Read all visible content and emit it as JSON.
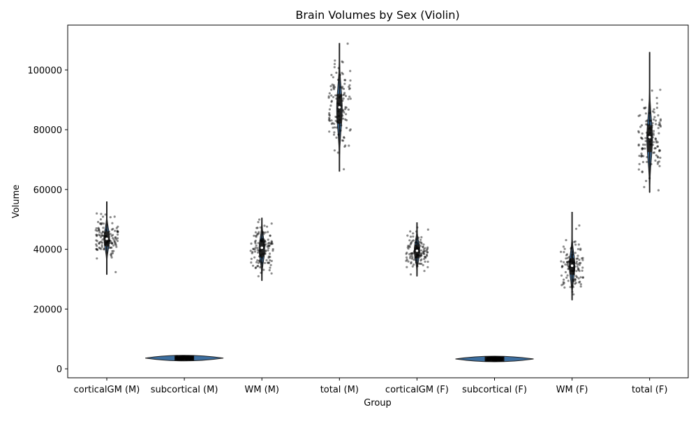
{
  "chart_data": {
    "type": "violin",
    "title": "Brain Volumes by Sex (Violin)",
    "xlabel": "Group",
    "ylabel": "Volume",
    "ylim": [
      -3000,
      115000
    ],
    "yticks": [
      0,
      20000,
      40000,
      60000,
      80000,
      100000
    ],
    "ytick_labels": [
      "0",
      "20000",
      "40000",
      "60000",
      "80000",
      "100000"
    ],
    "grid": false,
    "legend": "none",
    "colors": {
      "violin_fill": "#3c6e9f",
      "violin_edge": "#222222",
      "points": "#000000",
      "median": "#ffffff"
    },
    "categories": [
      "corticalGM (M)",
      "subcortical (M)",
      "WM (M)",
      "total (M)",
      "corticalGM (F)",
      "subcortical (F)",
      "WM (F)",
      "total (F)"
    ],
    "groups": [
      {
        "label": "corticalGM (M)",
        "min": 31500,
        "q1": 41000,
        "median": 43500,
        "q3": 46000,
        "max": 56000,
        "mean": 43500,
        "sd": 3300
      },
      {
        "label": "subcortical (M)",
        "min": 3000,
        "q1": 3400,
        "median": 3600,
        "q3": 3800,
        "max": 4300,
        "mean": 3600,
        "sd": 250
      },
      {
        "label": "WM (M)",
        "min": 29500,
        "q1": 37500,
        "median": 40500,
        "q3": 43000,
        "max": 50500,
        "mean": 40000,
        "sd": 3800
      },
      {
        "label": "total (M)",
        "min": 66000,
        "q1": 82000,
        "median": 87500,
        "q3": 92000,
        "max": 109000,
        "mean": 87000,
        "sd": 7000
      },
      {
        "label": "corticalGM (F)",
        "min": 31000,
        "q1": 37000,
        "median": 39500,
        "q3": 41500,
        "max": 49000,
        "mean": 39500,
        "sd": 3000
      },
      {
        "label": "subcortical (F)",
        "min": 2800,
        "q1": 3100,
        "median": 3300,
        "q3": 3500,
        "max": 4000,
        "mean": 3300,
        "sd": 250
      },
      {
        "label": "WM (F)",
        "min": 23000,
        "q1": 31500,
        "median": 34500,
        "q3": 37000,
        "max": 52500,
        "mean": 34500,
        "sd": 4200
      },
      {
        "label": "total (F)",
        "min": 59000,
        "q1": 72500,
        "median": 77500,
        "q3": 81500,
        "max": 106000,
        "mean": 77000,
        "sd": 7000
      }
    ]
  }
}
